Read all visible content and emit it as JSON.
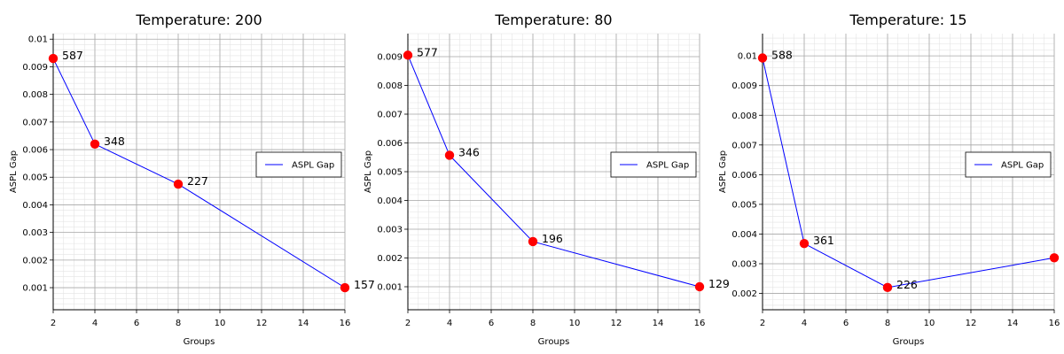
{
  "chart_data": [
    {
      "type": "line",
      "title": "Temperature: 200",
      "xlabel": "Groups",
      "ylabel": "ASPL Gap",
      "x": [
        2,
        4,
        8,
        16
      ],
      "xlim": [
        2,
        16
      ],
      "xticks": [
        "2",
        "4",
        "6",
        "8",
        "10",
        "12",
        "14",
        "16"
      ],
      "ylim": [
        0.0002,
        0.0102
      ],
      "yticks": [
        "0.001",
        "0.002",
        "0.003",
        "0.004",
        "0.005",
        "0.006",
        "0.007",
        "0.008",
        "0.009",
        "0.01"
      ],
      "grid": true,
      "legend_position": "center-right",
      "series": [
        {
          "name": "ASPL Gap",
          "color": "#0000ff",
          "marker_color": "#ff0000",
          "values": [
            0.0093,
            0.0062,
            0.00475,
            0.001
          ],
          "point_labels": [
            "587",
            "348",
            "227",
            "157"
          ]
        }
      ]
    },
    {
      "type": "line",
      "title": "Temperature: 80",
      "xlabel": "Groups",
      "ylabel": "ASPL Gap",
      "x": [
        2,
        4,
        8,
        16
      ],
      "xlim": [
        2,
        16
      ],
      "xticks": [
        "2",
        "4",
        "6",
        "8",
        "10",
        "12",
        "14",
        "16"
      ],
      "ylim": [
        0.0002,
        0.0098
      ],
      "yticks": [
        "0.001",
        "0.002",
        "0.003",
        "0.004",
        "0.005",
        "0.006",
        "0.007",
        "0.008",
        "0.009"
      ],
      "grid": true,
      "legend_position": "center-right",
      "series": [
        {
          "name": "ASPL Gap",
          "color": "#0000ff",
          "marker_color": "#ff0000",
          "values": [
            0.00905,
            0.00557,
            0.00257,
            0.001
          ],
          "point_labels": [
            "577",
            "346",
            "196",
            "129"
          ]
        }
      ]
    },
    {
      "type": "line",
      "title": "Temperature: 15",
      "xlabel": "Groups",
      "ylabel": "ASPL Gap",
      "x": [
        2,
        4,
        8,
        16
      ],
      "xlim": [
        2,
        16
      ],
      "xticks": [
        "2",
        "4",
        "6",
        "8",
        "10",
        "12",
        "14",
        "16"
      ],
      "ylim": [
        0.00145,
        0.01075
      ],
      "yticks": [
        "0.002",
        "0.003",
        "0.004",
        "0.005",
        "0.006",
        "0.007",
        "0.008",
        "0.009",
        "0.01"
      ],
      "grid": true,
      "legend_position": "center-right",
      "series": [
        {
          "name": "ASPL Gap",
          "color": "#0000ff",
          "marker_color": "#ff0000",
          "values": [
            0.00993,
            0.00368,
            0.0022,
            0.0032
          ],
          "point_labels": [
            "588",
            "361",
            "226",
            ""
          ]
        }
      ]
    }
  ]
}
